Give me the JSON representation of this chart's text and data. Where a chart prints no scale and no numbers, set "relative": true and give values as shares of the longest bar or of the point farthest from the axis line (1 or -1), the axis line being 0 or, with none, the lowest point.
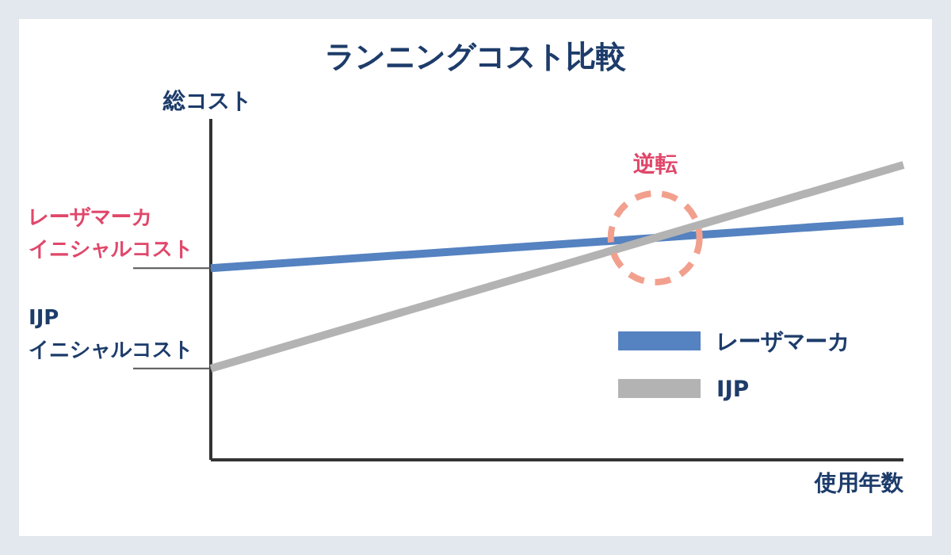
{
  "chart_data": {
    "type": "line",
    "title": "ランニングコスト比較",
    "ylabel": "総コスト",
    "xlabel": "使用年数",
    "relative": true,
    "categories": [
      null,
      null
    ],
    "legend": "right",
    "marker": "none",
    "line_style": "solid",
    "grid": false,
    "series": [
      {
        "name": "レーザマーカ",
        "color": "#5582c0",
        "values": [
          0.65,
          0.81
        ]
      },
      {
        "name": "IJP",
        "color": "#b3b3b3",
        "values": [
          0.31,
          1.0
        ]
      }
    ],
    "annotations": [
      "レーザマーカ",
      "イニシャルコスト",
      "IJP",
      "イニシャルコスト",
      "逆転"
    ]
  }
}
